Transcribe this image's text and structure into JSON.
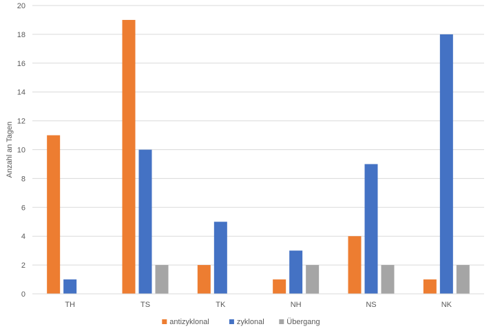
{
  "chart_data": {
    "type": "bar",
    "title": "",
    "xlabel": "",
    "ylabel": "Anzahl an Tagen",
    "ylim": [
      0,
      20
    ],
    "yticks": [
      0,
      2,
      4,
      6,
      8,
      10,
      12,
      14,
      16,
      18,
      20
    ],
    "categories": [
      "TH",
      "TS",
      "TK",
      "NH",
      "NS",
      "NK"
    ],
    "series": [
      {
        "name": "antizyklonal",
        "color": "#ED7D31",
        "values": [
          11,
          19,
          2,
          1,
          4,
          1
        ]
      },
      {
        "name": "zyklonal",
        "color": "#4472C4",
        "values": [
          1,
          10,
          5,
          3,
          9,
          18
        ]
      },
      {
        "name": "Übergang",
        "color": "#A5A5A5",
        "values": [
          0,
          2,
          0,
          2,
          2,
          2
        ]
      }
    ],
    "grid": true,
    "legend_position": "bottom"
  }
}
